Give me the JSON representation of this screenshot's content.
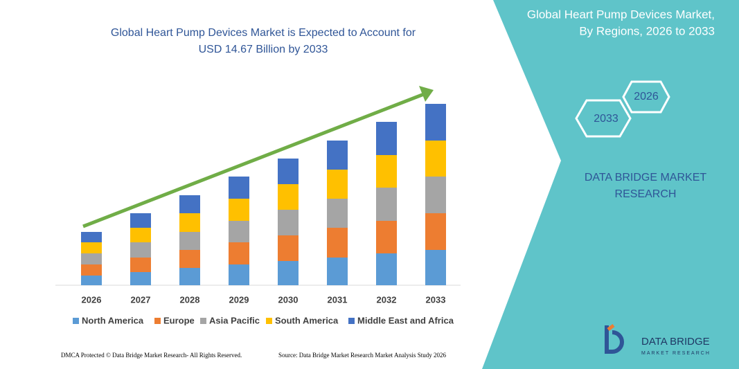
{
  "chart_data": {
    "type": "stacked-bar",
    "title": [
      "Global Heart Pump Devices Market is Expected to Account for",
      "USD 14.67 Billion by 2033"
    ],
    "categories": [
      "2026",
      "2027",
      "2028",
      "2029",
      "2030",
      "2031",
      "2032",
      "2033"
    ],
    "series": [
      {
        "name": "North America",
        "color": "#5b9bd5",
        "values": [
          14,
          19,
          25,
          30,
          35,
          40,
          46,
          51
        ]
      },
      {
        "name": "Europe",
        "color": "#ed7d31",
        "values": [
          16,
          21,
          26,
          32,
          37,
          43,
          47,
          53
        ]
      },
      {
        "name": "Asia Pacific",
        "color": "#a5a5a5",
        "values": [
          16,
          22,
          26,
          31,
          37,
          42,
          48,
          53
        ]
      },
      {
        "name": "South America",
        "color": "#ffc000",
        "values": [
          16,
          21,
          27,
          32,
          37,
          42,
          47,
          52
        ]
      },
      {
        "name": "Middle East and Africa",
        "color": "#4472c4",
        "values": [
          15,
          21,
          26,
          32,
          37,
          42,
          48,
          53
        ]
      }
    ]
  },
  "panel": {
    "title": [
      "Global Heart Pump Devices Market,",
      "By Regions, 2026 to 2033"
    ],
    "hexagons": [
      "2026",
      "2033"
    ],
    "brand": [
      "DATA BRIDGE MARKET",
      "RESEARCH"
    ],
    "logo": "DATA BRIDGE",
    "logo_sub": "MARKET RESEARCH"
  },
  "footer": {
    "left": "DMCA Protected © Data Bridge Market Research- All Rights Reserved.",
    "right": "Source: Data Bridge Market Research Market Analysis Study 2026"
  }
}
